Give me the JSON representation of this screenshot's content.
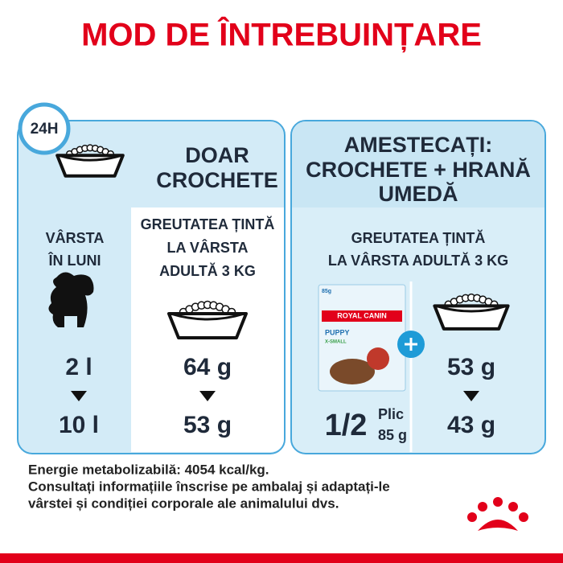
{
  "title": "MOD DE ÎNTREBUINȚARE",
  "left_panel": {
    "badge": "24H",
    "heading": [
      "DOAR",
      "CROCHETE"
    ],
    "age_label": [
      "VÂRSTA",
      "ÎN LUNI"
    ],
    "target_label": [
      "GREUTATEA ȚINTĂ",
      "LA VÂRSTA",
      "ADULTĂ 3 KG"
    ],
    "ages": [
      "2 l",
      "10 l"
    ],
    "grams": [
      "64 g",
      "53 g"
    ]
  },
  "right_panel": {
    "heading": [
      "AMESTECAȚI:",
      "CROCHETE + HRANĂ",
      "UMEDĂ"
    ],
    "target_label": [
      "GREUTATEA ȚINTĂ",
      "LA VÂRSTA ADULTĂ 3 KG"
    ],
    "pouch": {
      "weight_tag": "85g",
      "brand": "ROYAL CANIN",
      "product": "PUPPY",
      "size": "X-SMALL"
    },
    "portion": {
      "fraction": "1/2",
      "unit": "Plic",
      "weight": "85 g"
    },
    "grams": [
      "53 g",
      "43 g"
    ]
  },
  "footer": [
    "Energie metabolizabilă: 4054 kcal/kg.",
    "Consultați informațiile înscrise pe ambalaj și adaptați-le",
    "vârstei și condiției corporale ale animalului dvs."
  ]
}
